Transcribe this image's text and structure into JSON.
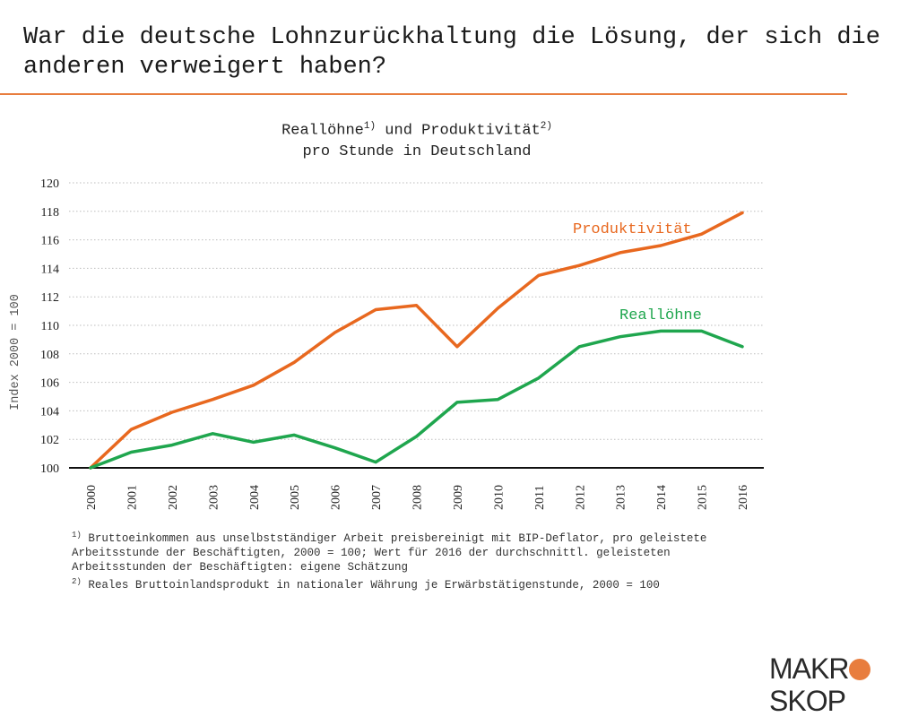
{
  "slide": {
    "title": "War die deutsche Lohnzurückhaltung die Lösung, der sich die anderen verweigert haben?"
  },
  "chart_title": {
    "part1": "Reallöhne",
    "sup1": "1)",
    "part2": " und Produktivität",
    "sup2": "2)",
    "line2": "pro Stunde in Deutschland"
  },
  "chart_data": {
    "type": "line",
    "title": "Reallöhne1) und Produktivität2) pro Stunde in Deutschland",
    "xlabel": "",
    "ylabel": "Index 2000 = 100",
    "categories": [
      "2000",
      "2001",
      "2002",
      "2003",
      "2004",
      "2005",
      "2006",
      "2007",
      "2008",
      "2009",
      "2010",
      "2011",
      "2012",
      "2013",
      "2014",
      "2015",
      "2016"
    ],
    "ylim": [
      100,
      120
    ],
    "yticks": [
      100,
      102,
      104,
      106,
      108,
      110,
      112,
      114,
      116,
      118,
      120
    ],
    "grid": true,
    "series": [
      {
        "name": "Produktivität",
        "color": "#e8681f",
        "values": [
          100,
          102.7,
          103.9,
          104.8,
          105.8,
          107.4,
          109.5,
          111.1,
          111.4,
          108.5,
          111.2,
          113.5,
          114.2,
          115.1,
          115.6,
          116.4,
          117.9
        ]
      },
      {
        "name": "Reallöhne",
        "color": "#1fa64e",
        "values": [
          100,
          101.1,
          101.6,
          102.4,
          101.8,
          102.3,
          101.4,
          100.4,
          102.2,
          104.6,
          104.8,
          106.3,
          108.5,
          109.2,
          109.6,
          109.6,
          108.5
        ]
      }
    ]
  },
  "footnotes": {
    "fn1_mark": "1)",
    "fn1_line1": " Bruttoeinkommen aus unselbstständiger Arbeit preisbereinigt mit BIP-Deflator, pro geleistete",
    "fn1_line2": "Arbeitsstunde der Beschäftigten, 2000 = 100; Wert für 2016 der durchschnittl. geleisteten",
    "fn1_line3": "Arbeitsstunden der Beschäftigten: eigene Schätzung",
    "fn2_mark": "2)",
    "fn2_line1": " Reales Bruttoinlandsprodukt in nationaler Währung je Erwärbstätigenstunde, 2000 = 100"
  },
  "logo": {
    "left": "MAKR",
    "right": "SKOP"
  }
}
